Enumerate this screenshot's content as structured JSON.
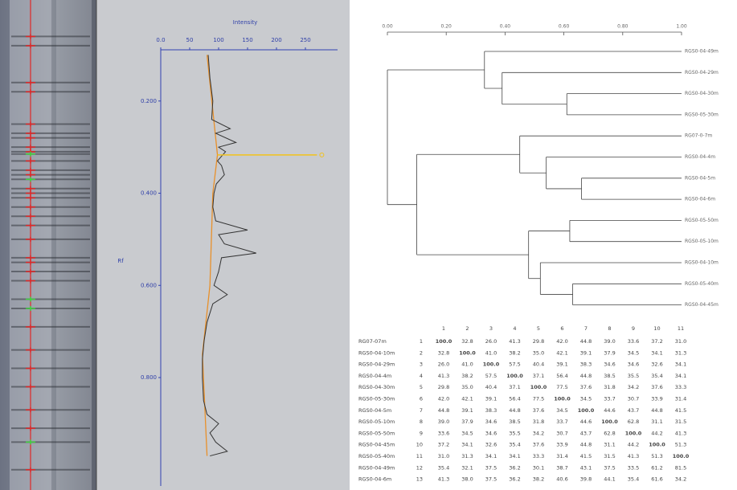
{
  "gel": {
    "axis_title": "Intensity",
    "rf_label": "Rf",
    "xlim": [
      0,
      300
    ],
    "xticks": [
      {
        "value": 0,
        "label": "0.0"
      },
      50,
      100,
      150,
      200,
      250
    ],
    "ylim": [
      0,
      1.03
    ],
    "yticks": [
      {
        "value": 0.2,
        "label": "0.200"
      },
      {
        "value": 0.4,
        "label": "0.400"
      },
      {
        "value": 0.6,
        "label": "0.600"
      },
      {
        "value": 0.8,
        "label": "0.800"
      }
    ],
    "profile": {
      "color": "#333333",
      "rf": [
        0.1,
        0.15,
        0.2,
        0.24,
        0.26,
        0.27,
        0.29,
        0.3,
        0.31,
        0.33,
        0.34,
        0.36,
        0.38,
        0.4,
        0.43,
        0.46,
        0.48,
        0.49,
        0.51,
        0.53,
        0.54,
        0.57,
        0.6,
        0.62,
        0.64,
        0.68,
        0.72,
        0.76,
        0.8,
        0.85,
        0.88,
        0.9,
        0.92,
        0.94,
        0.96,
        0.97
      ],
      "intensity": [
        82,
        85,
        90,
        88,
        120,
        95,
        130,
        100,
        112,
        98,
        105,
        110,
        96,
        92,
        90,
        95,
        150,
        100,
        110,
        165,
        105,
        100,
        92,
        115,
        90,
        80,
        75,
        72,
        72,
        74,
        80,
        100,
        85,
        95,
        115,
        85
      ]
    },
    "baseline": {
      "color": "#e8902a",
      "rf": [
        0.1,
        0.317,
        0.4,
        0.6,
        0.75,
        0.97
      ],
      "intensity": [
        80,
        98,
        90,
        85,
        72,
        80
      ]
    },
    "selected_peak": {
      "color": "#f2c21b",
      "rf": 0.317,
      "intensity": 270
    },
    "bands": {
      "color": "#e02828",
      "rf": [
        0.06,
        0.08,
        0.16,
        0.18,
        0.25,
        0.27,
        0.28,
        0.3,
        0.31,
        0.33,
        0.35,
        0.36,
        0.39,
        0.4,
        0.41,
        0.43,
        0.45,
        0.47,
        0.5,
        0.54,
        0.55,
        0.57,
        0.59,
        0.69,
        0.74,
        0.78,
        0.82,
        0.87,
        0.91,
        1.0
      ]
    },
    "green_bands": {
      "color": "#3fd23f",
      "rf": [
        0.315,
        0.37,
        0.63,
        0.65,
        0.94
      ]
    }
  },
  "dendrogram": {
    "xlim": [
      0,
      1
    ],
    "xticks": [
      {
        "value": 0,
        "label": "0.00"
      },
      {
        "value": 0.2,
        "label": "0.20"
      },
      {
        "value": 0.4,
        "label": "0.40"
      },
      {
        "value": 0.6,
        "label": "0.60"
      },
      {
        "value": 0.8,
        "label": "0.80"
      },
      {
        "value": 1,
        "label": "1.00"
      }
    ],
    "leaves": [
      "RGS0-04-49m",
      "RGS0-04-29m",
      "RGS0-04-30m",
      "RGS0-05-30m",
      "RG07-0-7m",
      "RGS0-04-4m",
      "RGS0-04-5m",
      "RGS0-04-6m",
      "RGS0-05-50m",
      "RGS0-05-10m",
      "RGS0-04-10m",
      "RGS0-05-40m",
      "RGS0-04-45m"
    ],
    "merges": [
      {
        "a": 2,
        "b": 3,
        "level": 0.61
      },
      {
        "a": 1,
        "b": 13,
        "level": 0.39
      },
      {
        "a": 0,
        "b": 14,
        "level": 0.33
      },
      {
        "a": 6,
        "b": 7,
        "level": 0.66
      },
      {
        "a": 5,
        "b": 16,
        "level": 0.54
      },
      {
        "a": 4,
        "b": 17,
        "level": 0.45
      },
      {
        "a": 8,
        "b": 9,
        "level": 0.62
      },
      {
        "a": 11,
        "b": 12,
        "level": 0.63
      },
      {
        "a": 10,
        "b": 20,
        "level": 0.52
      },
      {
        "a": 19,
        "b": 21,
        "level": 0.48
      },
      {
        "a": 18,
        "b": 22,
        "level": 0.1
      },
      {
        "a": 15,
        "b": 23,
        "level": 0.0
      }
    ]
  },
  "matrix": {
    "columns": [
      "1",
      "2",
      "3",
      "4",
      "5",
      "6",
      "7",
      "8",
      "9",
      "10",
      "11"
    ],
    "rows": [
      {
        "name": "RG07-07m",
        "index": 1,
        "values": [
          "100.0",
          "32.8",
          "26.0",
          "41.3",
          "29.8",
          "42.0",
          "44.8",
          "39.0",
          "33.6",
          "37.2",
          "31.0"
        ]
      },
      {
        "name": "RGS0-04-10m",
        "index": 2,
        "values": [
          "32.8",
          "100.0",
          "41.0",
          "38.2",
          "35.0",
          "42.1",
          "39.1",
          "37.9",
          "34.5",
          "34.1",
          "31.3"
        ]
      },
      {
        "name": "RGS0-04-29m",
        "index": 3,
        "values": [
          "26.0",
          "41.0",
          "100.0",
          "57.5",
          "40.4",
          "39.1",
          "38.3",
          "34.6",
          "34.6",
          "32.6",
          "34.1"
        ]
      },
      {
        "name": "RGS0-04-4m",
        "index": 4,
        "values": [
          "41.3",
          "38.2",
          "57.5",
          "100.0",
          "37.1",
          "56.4",
          "44.8",
          "38.5",
          "35.5",
          "35.4",
          "34.1"
        ]
      },
      {
        "name": "RGS0-04-30m",
        "index": 5,
        "values": [
          "29.8",
          "35.0",
          "40.4",
          "37.1",
          "100.0",
          "77.5",
          "37.6",
          "31.8",
          "34.2",
          "37.6",
          "33.3"
        ]
      },
      {
        "name": "RGS0-05-30m",
        "index": 6,
        "values": [
          "42.0",
          "42.1",
          "39.1",
          "56.4",
          "77.5",
          "100.0",
          "34.5",
          "33.7",
          "30.7",
          "33.9",
          "31.4"
        ]
      },
      {
        "name": "RGS0-04-5m",
        "index": 7,
        "values": [
          "44.8",
          "39.1",
          "38.3",
          "44.8",
          "37.6",
          "34.5",
          "100.0",
          "44.6",
          "43.7",
          "44.8",
          "41.5"
        ]
      },
      {
        "name": "RGS0-05-10m",
        "index": 8,
        "values": [
          "39.0",
          "37.9",
          "34.6",
          "38.5",
          "31.8",
          "33.7",
          "44.6",
          "100.0",
          "62.8",
          "31.1",
          "31.5"
        ]
      },
      {
        "name": "RGS0-05-50m",
        "index": 9,
        "values": [
          "33.6",
          "34.5",
          "34.6",
          "35.5",
          "34.2",
          "30.7",
          "43.7",
          "62.8",
          "100.0",
          "44.2",
          "41.3"
        ]
      },
      {
        "name": "RGS0-04-45m",
        "index": 10,
        "values": [
          "37.2",
          "34.1",
          "32.6",
          "35.4",
          "37.6",
          "33.9",
          "44.8",
          "31.1",
          "44.2",
          "100.0",
          "51.3"
        ]
      },
      {
        "name": "RGS0-05-40m",
        "index": 11,
        "values": [
          "31.0",
          "31.3",
          "34.1",
          "34.1",
          "33.3",
          "31.4",
          "41.5",
          "31.5",
          "41.3",
          "51.3",
          "100.0"
        ]
      },
      {
        "name": "RGS0-04-49m",
        "index": 12,
        "values": [
          "35.4",
          "32.1",
          "37.5",
          "36.2",
          "30.1",
          "38.7",
          "43.1",
          "37.5",
          "33.5",
          "61.2",
          "81.5"
        ]
      },
      {
        "name": "RGS0-04-6m",
        "index": 13,
        "values": [
          "41.3",
          "38.0",
          "37.5",
          "36.2",
          "38.2",
          "40.6",
          "39.8",
          "44.1",
          "35.4",
          "61.6",
          "34.2"
        ]
      }
    ]
  }
}
